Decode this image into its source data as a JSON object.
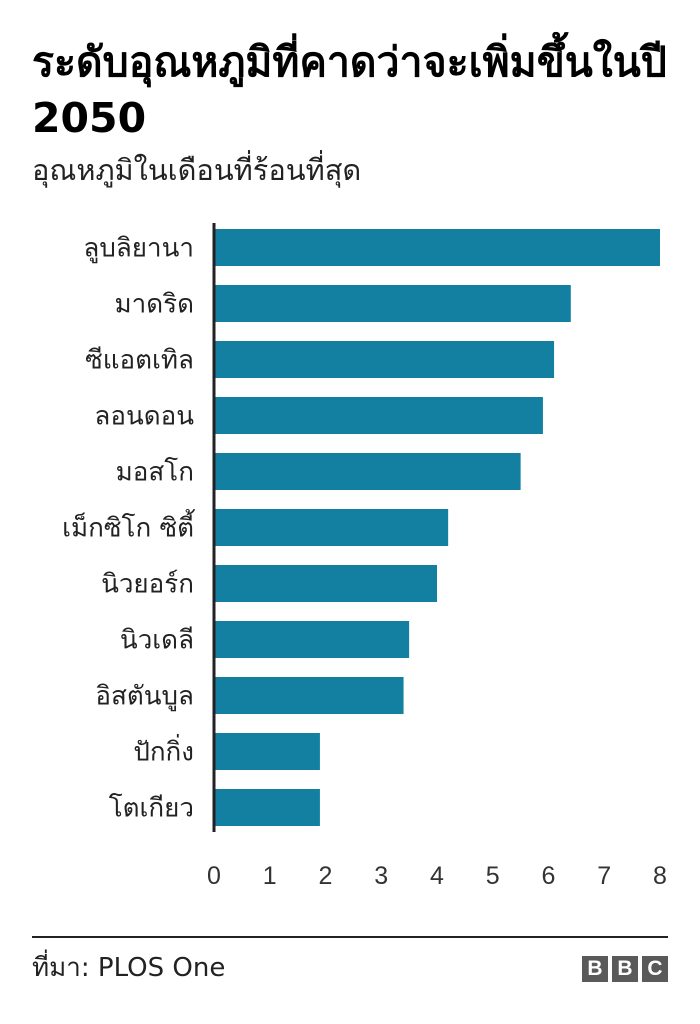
{
  "title": "ระดับอุณหภูมิที่คาดว่าจะเพิ่มขึ้นในปี 2050",
  "subtitle": "อุณหภูมิในเดือนที่ร้อนที่สุด",
  "source": "ที่มา: PLOS One",
  "logo_letters": [
    "B",
    "B",
    "C"
  ],
  "colors": {
    "bar": "#1380a1",
    "axis": "#222222",
    "text": "#222222"
  },
  "chart_data": {
    "type": "bar",
    "orientation": "horizontal",
    "categories": [
      "ลูบลิยานา",
      "มาดริด",
      "ซีแอตเทิล",
      "ลอนดอน",
      "มอสโก",
      "เม็กซิโก ซิตี้",
      "นิวยอร์ก",
      "นิวเดลี",
      "อิสตันบูล",
      "ปักกิ่ง",
      "โตเกียว"
    ],
    "values": [
      8.0,
      6.4,
      6.1,
      5.9,
      5.5,
      4.2,
      4.0,
      3.5,
      3.4,
      1.9,
      1.9
    ],
    "xlim": [
      0,
      8
    ],
    "xticks": [
      0,
      1,
      2,
      3,
      4,
      5,
      6,
      7,
      8
    ],
    "grid": false,
    "legend": "none"
  }
}
